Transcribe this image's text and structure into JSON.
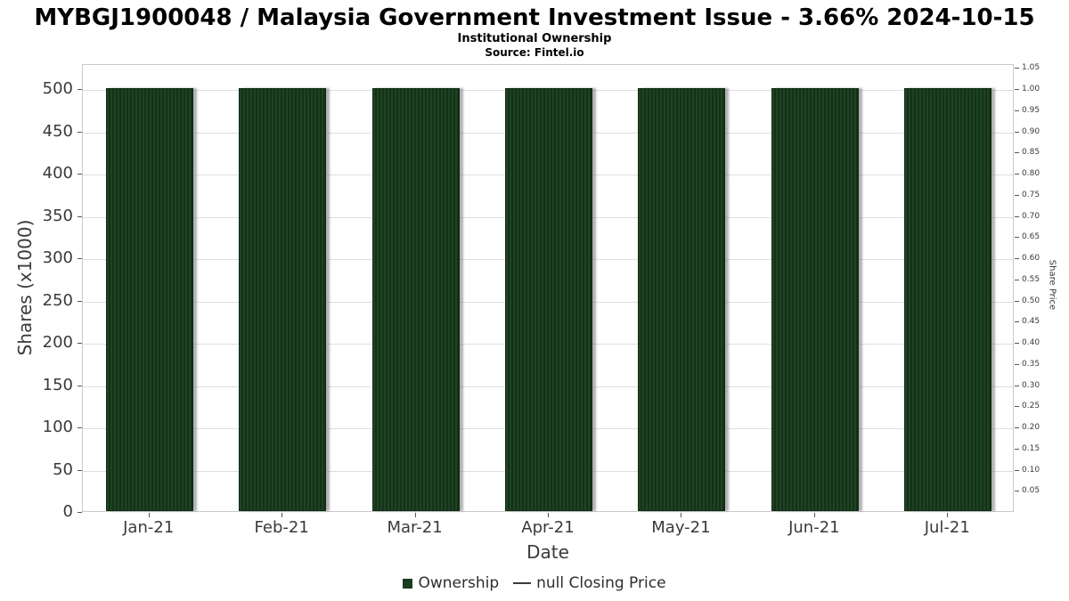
{
  "chart_data": {
    "type": "bar",
    "title": "MYBGJ1900048 / Malaysia Government Investment Issue - 3.66% 2024-10-15",
    "subtitle": "Institutional Ownership",
    "source": "Source: Fintel.io",
    "xlabel": "Date",
    "ylabel": "Shares (x1000)",
    "ylabel_right": "Share Price",
    "categories": [
      "Jan-21",
      "Feb-21",
      "Mar-21",
      "Apr-21",
      "May-21",
      "Jun-21",
      "Jul-21"
    ],
    "series": [
      {
        "name": "Ownership",
        "type": "bar",
        "color": "#1a3c20",
        "values": [
          500,
          500,
          500,
          500,
          500,
          500,
          500
        ]
      },
      {
        "name": "null Closing Price",
        "type": "line",
        "color": "#3c3c3c",
        "values": [
          null,
          null,
          null,
          null,
          null,
          null,
          null
        ]
      }
    ],
    "ylim_left": [
      0,
      529
    ],
    "yticks_left": [
      0,
      50,
      100,
      150,
      200,
      250,
      300,
      350,
      400,
      450,
      500
    ],
    "yticks_right": [
      0.05,
      0.1,
      0.15,
      0.2,
      0.25,
      0.3,
      0.35,
      0.4,
      0.45,
      0.5,
      0.55,
      0.6,
      0.65,
      0.7,
      0.75,
      0.8,
      0.85,
      0.9,
      0.95,
      1.0,
      1.05
    ],
    "right_axis_price_equivalent_of_max_shares": 1.0,
    "grid": true,
    "legend_position": "bottom",
    "bar_color": "#1a3c20",
    "gridline_color": "#dedede",
    "plot_border_color": "#c9c9c9"
  }
}
